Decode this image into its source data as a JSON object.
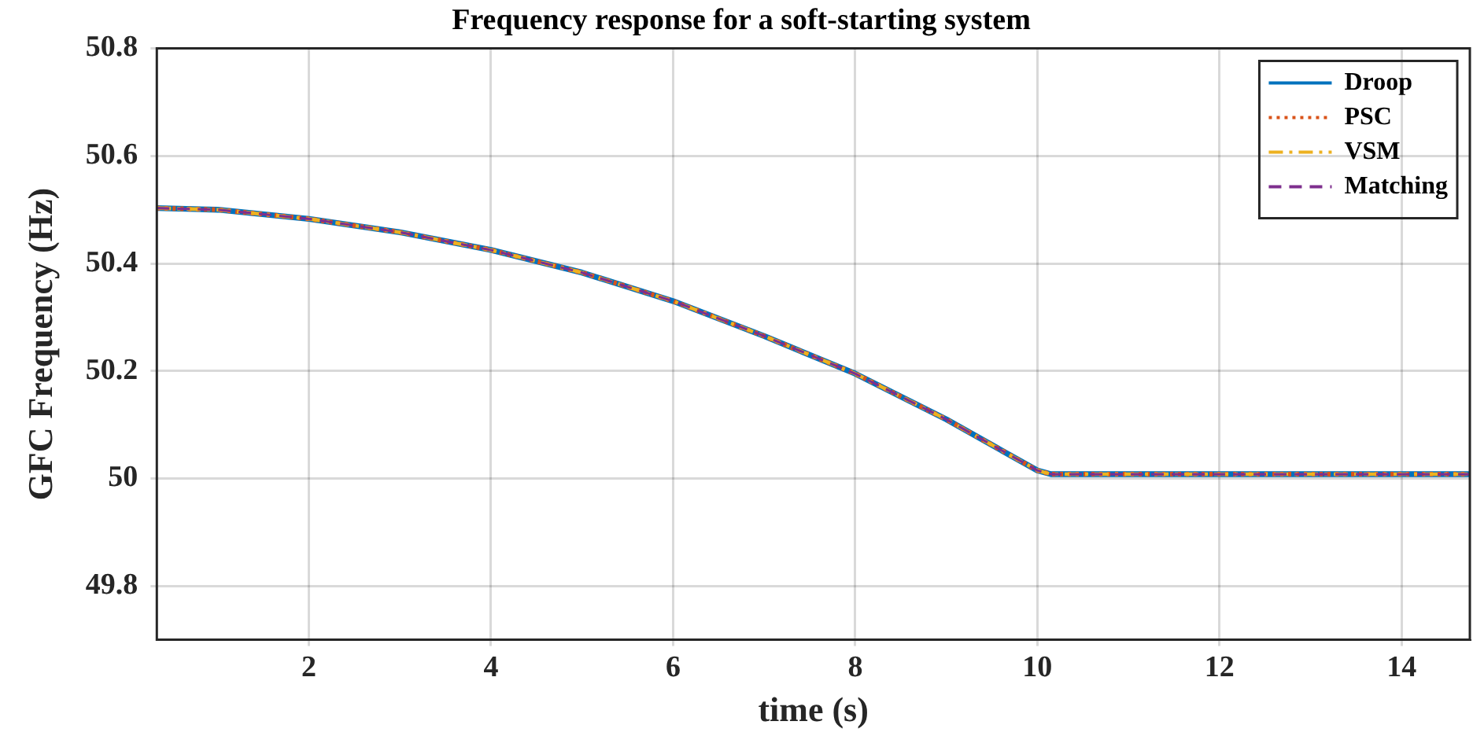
{
  "chart_data": {
    "type": "line",
    "title": "Frequency response for a soft-starting system",
    "xlabel": "time (s)",
    "ylabel": "GFC Frequency (Hz)",
    "x": [
      0.33,
      1,
      2,
      3,
      4,
      5,
      6,
      7,
      8,
      9,
      10,
      10.15,
      12,
      14.75
    ],
    "series": [
      {
        "name": "Droop",
        "color": "#0072bd",
        "line_style": "solid",
        "values": [
          50.503,
          50.5,
          50.483,
          50.458,
          50.425,
          50.383,
          50.33,
          50.265,
          50.195,
          50.11,
          50.015,
          50.008,
          50.008,
          50.008
        ]
      },
      {
        "name": "PSC",
        "color": "#d95319",
        "line_style": "dotted",
        "values": [
          50.503,
          50.5,
          50.483,
          50.458,
          50.425,
          50.383,
          50.33,
          50.265,
          50.195,
          50.11,
          50.015,
          50.008,
          50.008,
          50.008
        ]
      },
      {
        "name": "VSM",
        "color": "#edb120",
        "line_style": "dashdot",
        "values": [
          50.503,
          50.5,
          50.483,
          50.458,
          50.425,
          50.383,
          50.33,
          50.265,
          50.195,
          50.11,
          50.015,
          50.008,
          50.008,
          50.008
        ]
      },
      {
        "name": "Matching",
        "color": "#7e2f8e",
        "line_style": "dashed",
        "values": [
          50.503,
          50.5,
          50.483,
          50.458,
          50.425,
          50.383,
          50.33,
          50.265,
          50.195,
          50.11,
          50.015,
          50.008,
          50.008,
          50.008
        ]
      }
    ],
    "xlim": [
      0.33,
      14.75
    ],
    "ylim": [
      49.7,
      50.8
    ],
    "xticks": [
      2,
      4,
      6,
      8,
      10,
      12,
      14
    ],
    "yticks": [
      49.8,
      50,
      50.2,
      50.4,
      50.6,
      50.8
    ],
    "grid": true,
    "legend": "top right",
    "marker": "none"
  }
}
